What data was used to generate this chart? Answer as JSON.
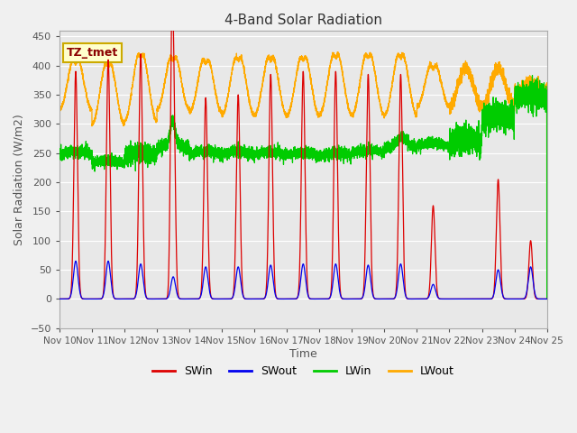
{
  "title": "4-Band Solar Radiation",
  "xlabel": "Time",
  "ylabel": "Solar Radiation (W/m2)",
  "ylim": [
    -50,
    460
  ],
  "yticks": [
    -50,
    0,
    50,
    100,
    150,
    200,
    250,
    300,
    350,
    400,
    450
  ],
  "xlim": [
    0,
    15
  ],
  "xtick_labels": [
    "Nov 10",
    "Nov 11",
    "Nov 12",
    "Nov 13",
    "Nov 14",
    "Nov 15",
    "Nov 16",
    "Nov 17",
    "Nov 18",
    "Nov 19",
    "Nov 20",
    "Nov 21",
    "Nov 22",
    "Nov 23",
    "Nov 24",
    "Nov 25"
  ],
  "annotation": "TZ_tmet",
  "colors": {
    "SWin": "#dd0000",
    "SWout": "#0000ee",
    "LWin": "#00cc00",
    "LWout": "#ffaa00"
  },
  "fig_bg": "#f0f0f0",
  "ax_bg": "#e8e8e8",
  "grid_color": "#ffffff",
  "swin_peaks": [
    390,
    410,
    420,
    415,
    345,
    350,
    385,
    390,
    390,
    385,
    385,
    160,
    0,
    205,
    100
  ],
  "swout_peaks": [
    65,
    65,
    60,
    38,
    55,
    55,
    58,
    60,
    60,
    58,
    60,
    25,
    0,
    50,
    55
  ],
  "lwin_base": [
    248,
    232,
    245,
    258,
    248,
    248,
    247,
    246,
    245,
    250,
    258,
    262,
    270,
    310,
    345
  ],
  "lwout_night": [
    325,
    300,
    305,
    325,
    320,
    315,
    315,
    315,
    315,
    315,
    315,
    330,
    330,
    330,
    355
  ],
  "lwout_peak": [
    420,
    415,
    430,
    425,
    420,
    425,
    425,
    425,
    430,
    430,
    430,
    410,
    395,
    395,
    370
  ]
}
